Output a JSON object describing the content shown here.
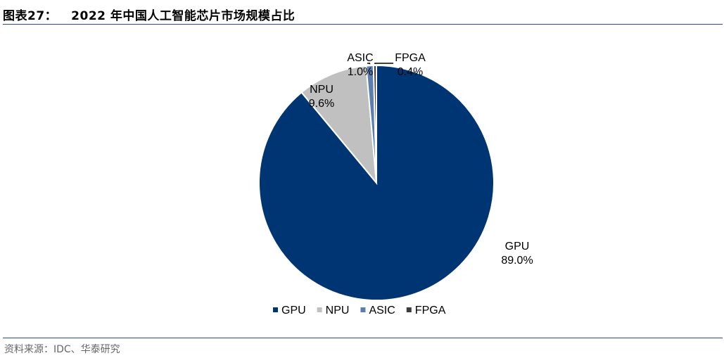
{
  "header": {
    "figure_label": "图表27：",
    "title": "2022 年中国人工智能芯片市场规模占比"
  },
  "footer": {
    "source": "资料来源：IDC、华泰研究"
  },
  "chart_data": {
    "type": "pie",
    "title": "2022 年中国人工智能芯片市场规模占比",
    "unit": "%",
    "categories": [
      "GPU",
      "NPU",
      "ASIC",
      "FPGA"
    ],
    "values": [
      89.0,
      9.6,
      1.0,
      0.4
    ],
    "value_labels": [
      "89.0%",
      "9.6%",
      "1.0%",
      "0.4%"
    ],
    "colors": [
      "#003573",
      "#c0c0c0",
      "#5b7db0",
      "#3c3c3c"
    ],
    "legend": {
      "placement": "bottom",
      "entries": [
        "GPU",
        "NPU",
        "ASIC",
        "FPGA"
      ]
    },
    "start_angle": "12 o'clock",
    "direction": "clockwise"
  }
}
